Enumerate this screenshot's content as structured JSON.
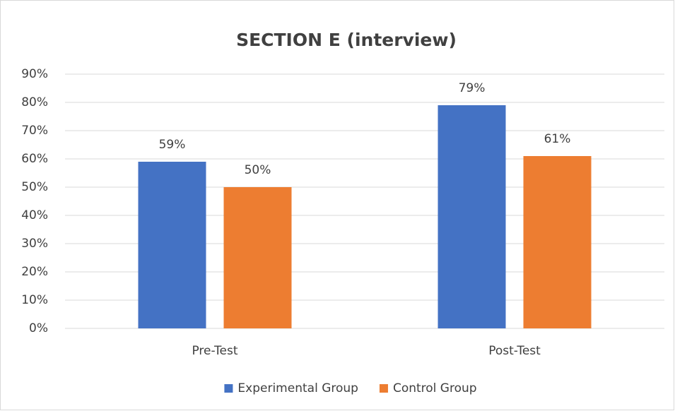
{
  "chart_data": {
    "type": "bar",
    "title": "SECTION E (interview)",
    "categories": [
      "Pre-Test",
      "Post-Test"
    ],
    "series": [
      {
        "name": "Experimental Group",
        "color": "#4472c4",
        "values": [
          59,
          79
        ],
        "value_labels": [
          "59%",
          "79%"
        ]
      },
      {
        "name": "Control Group",
        "color": "#ed7d31",
        "values": [
          50,
          61
        ],
        "value_labels": [
          "50%",
          "61%"
        ]
      }
    ],
    "ylim": [
      0,
      90
    ],
    "yticks": [
      {
        "value": 0,
        "label": "0%"
      },
      {
        "value": 10,
        "label": "10%"
      },
      {
        "value": 20,
        "label": "20%"
      },
      {
        "value": 30,
        "label": "30%"
      },
      {
        "value": 40,
        "label": "40%"
      },
      {
        "value": 50,
        "label": "50%"
      },
      {
        "value": 60,
        "label": "60%"
      },
      {
        "value": 70,
        "label": "70%"
      },
      {
        "value": 80,
        "label": "80%"
      },
      {
        "value": 90,
        "label": "90%"
      }
    ],
    "grid": true,
    "legend": "bottom"
  }
}
